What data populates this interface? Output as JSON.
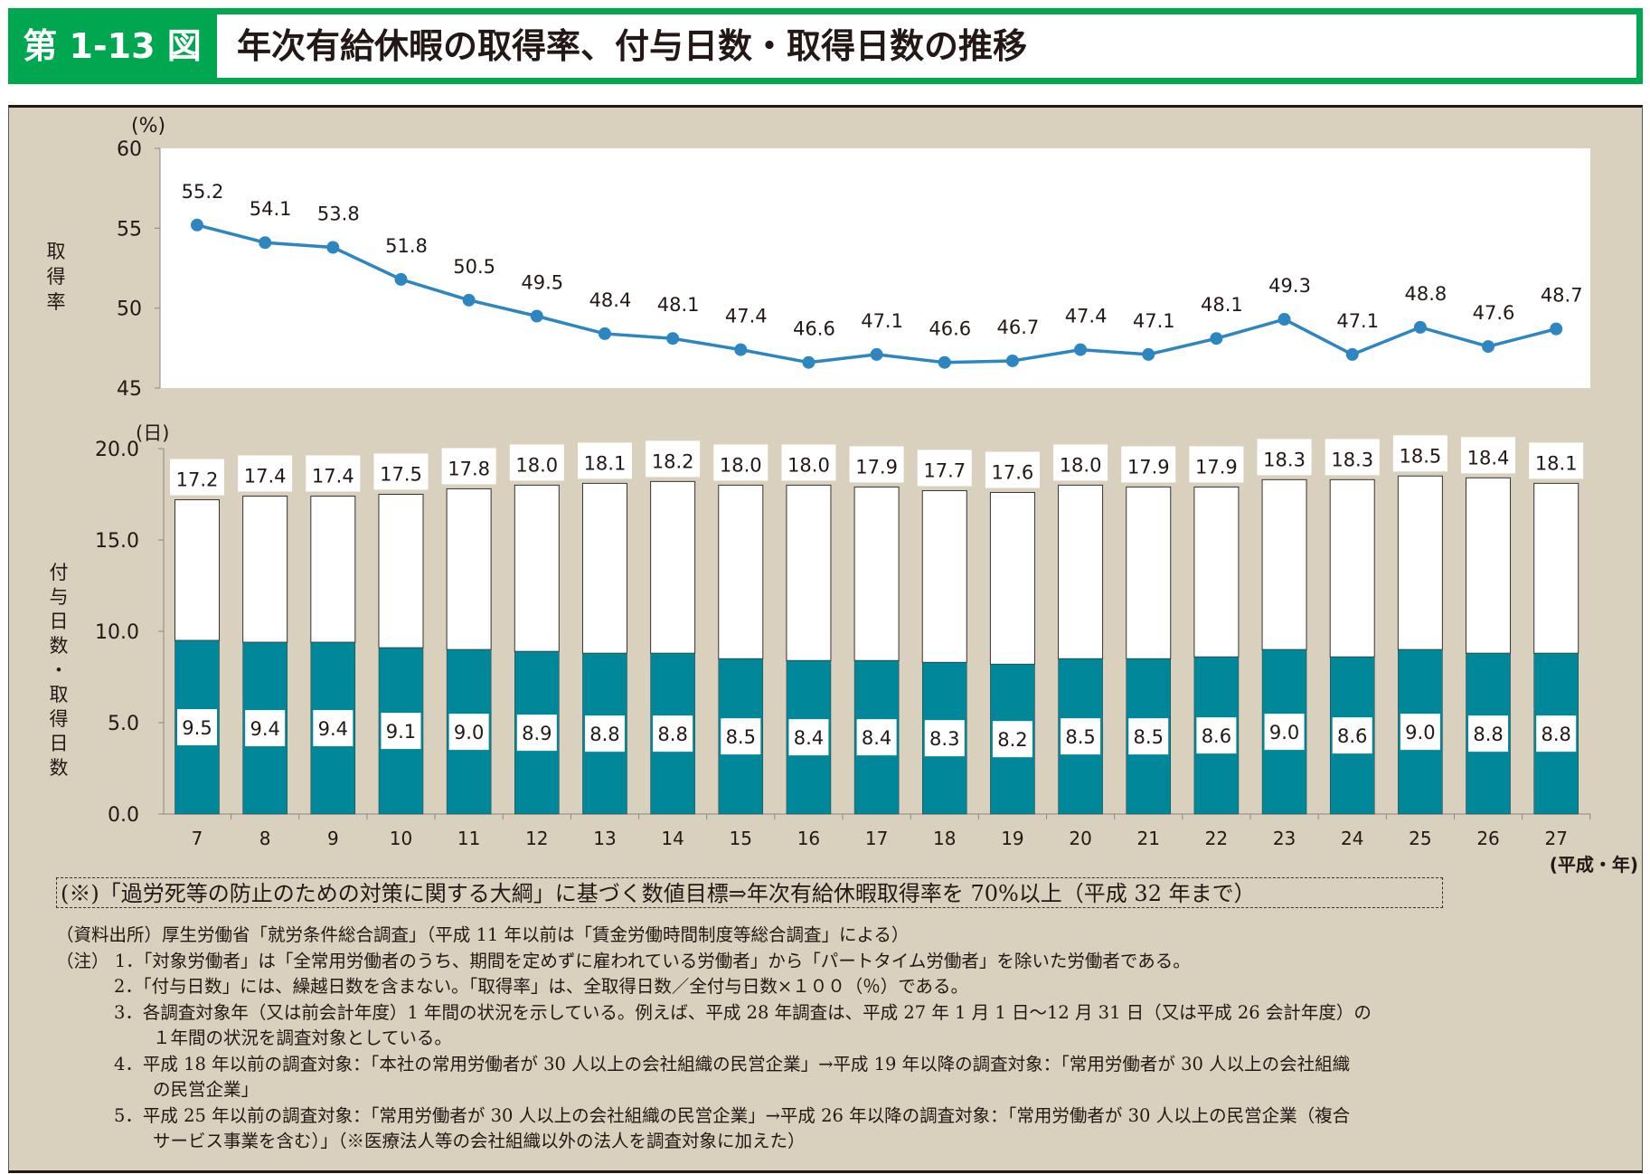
{
  "header": {
    "figure_label": "第 1-13 図",
    "title": "年次有給休暇の取得率、付与日数・取得日数の推移"
  },
  "chart_data": [
    {
      "type": "line",
      "ylabel": "取得率",
      "yunit": "(%)",
      "ylim": [
        45,
        60
      ],
      "yticks": [
        "60",
        "55",
        "50",
        "45"
      ],
      "categories": [
        "7",
        "8",
        "9",
        "10",
        "11",
        "12",
        "13",
        "14",
        "15",
        "16",
        "17",
        "18",
        "19",
        "20",
        "21",
        "22",
        "23",
        "24",
        "25",
        "26",
        "27"
      ],
      "values": [
        55.2,
        54.1,
        53.8,
        51.8,
        50.5,
        49.5,
        48.4,
        48.1,
        47.4,
        46.6,
        47.1,
        46.6,
        46.7,
        47.4,
        47.1,
        48.1,
        49.3,
        47.1,
        48.8,
        47.6,
        48.7
      ],
      "color": "#2e86c1",
      "grid": false
    },
    {
      "type": "bar",
      "ylabel": "付与日数・取得日数",
      "yunit": "(日)",
      "ylim": [
        0,
        20
      ],
      "yticks": [
        "20.0",
        "15.0",
        "10.0",
        "5.0",
        "0.0"
      ],
      "xlabel": "(平成・年)",
      "categories": [
        "7",
        "8",
        "9",
        "10",
        "11",
        "12",
        "13",
        "14",
        "15",
        "16",
        "17",
        "18",
        "19",
        "20",
        "21",
        "22",
        "23",
        "24",
        "25",
        "26",
        "27"
      ],
      "series": [
        {
          "values": [
            9.5,
            9.4,
            9.4,
            9.1,
            9.0,
            8.9,
            8.8,
            8.8,
            8.5,
            8.4,
            8.4,
            8.3,
            8.2,
            8.5,
            8.5,
            8.6,
            9.0,
            8.6,
            9.0,
            8.8,
            8.8
          ],
          "color": "#00889a"
        },
        {
          "values": [
            17.2,
            17.4,
            17.4,
            17.5,
            17.8,
            18.0,
            18.1,
            18.2,
            18.0,
            18.0,
            17.9,
            17.7,
            17.6,
            18.0,
            17.9,
            17.9,
            18.3,
            18.3,
            18.5,
            18.4,
            18.1
          ],
          "color": "#ffffff"
        }
      ],
      "labels_taken": [
        "9.5",
        "9.4",
        "9.4",
        "9.1",
        "9.0",
        "8.9",
        "8.8",
        "8.8",
        "8.5",
        "8.4",
        "8.4",
        "8.3",
        "8.2",
        "8.5",
        "8.5",
        "8.6",
        "9.0",
        "8.6",
        "9.0",
        "8.8",
        "8.8"
      ],
      "labels_granted": [
        "17.2",
        "17.4",
        "17.4",
        "17.5",
        "17.8",
        "18.0",
        "18.1",
        "18.2",
        "18.0",
        "18.0",
        "17.9",
        "17.7",
        "17.6",
        "18.0",
        "17.9",
        "17.9",
        "18.3",
        "18.3",
        "18.5",
        "18.4",
        "18.1"
      ],
      "grid": false
    }
  ],
  "target_note": "(※)「過労死等の防止のための対策に関する大綱」に基づく数値目標⇒年次有給休暇取得率を 70%以上（平成 32 年まで）",
  "notes": [
    "（資料出所）厚生労働省「就労条件総合調査」（平成 11 年以前は「賃金労働時間制度等総合調査」による）",
    "（注） 1．「対象労働者」は「全常用労働者のうち、期間を定めずに雇われている労働者」から「パートタイム労働者」を除いた労働者である。",
    "2．「付与日数」には、繰越日数を含まない。「取得率」は、全取得日数／全付与日数×１００（％）である。",
    "3．各調査対象年（又は前会計年度）1 年間の状況を示している。例えば、平成 28 年調査は、平成 27 年 1 月 1 日〜12 月 31 日（又は平成 26 会計年度）の",
    "１年間の状況を調査対象としている。",
    "4．平成 18 年以前の調査対象：「本社の常用労働者が 30 人以上の会社組織の民営企業」→平成 19 年以降の調査対象：「常用労働者が 30 人以上の会社組織",
    "の民営企業」",
    "5．平成 25 年以前の調査対象：「常用労働者が 30 人以上の会社組織の民営企業」→平成 26 年以降の調査対象：「常用労働者が 30 人以上の民営企業（複合",
    "サービス事業を含む）」（※医療法人等の会社組織以外の法人を調査対象に加えた）"
  ]
}
